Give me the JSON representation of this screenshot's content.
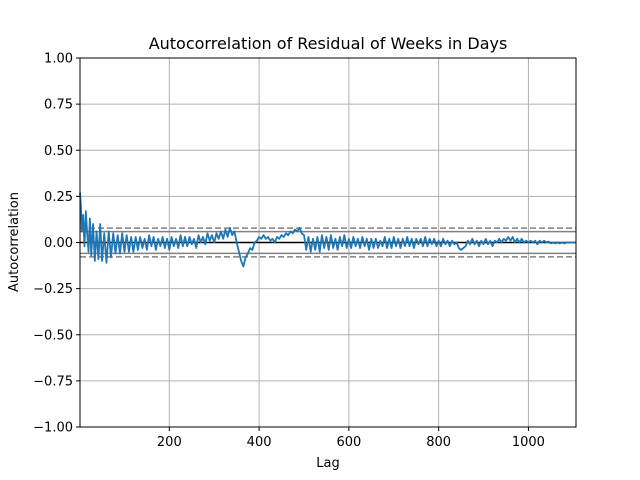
{
  "chart_data": {
    "type": "line",
    "title": "Autocorrelation of Residual of Weeks in Days",
    "xlabel": "Lag",
    "ylabel": "Autocorrelation",
    "xlim": [
      1,
      1106
    ],
    "ylim": [
      -1.0,
      1.0
    ],
    "x_ticks": [
      200,
      400,
      600,
      800,
      1000
    ],
    "x_tick_labels": [
      "200",
      "400",
      "600",
      "800",
      "1000"
    ],
    "y_ticks": [
      -1.0,
      -0.75,
      -0.5,
      -0.25,
      0.0,
      0.25,
      0.5,
      0.75,
      1.0
    ],
    "y_tick_labels": [
      "−1.00",
      "−0.75",
      "−0.50",
      "−0.25",
      "0.00",
      "0.25",
      "0.50",
      "0.75",
      "1.00"
    ],
    "grid": true,
    "confidence_bands": {
      "outer_dashed": [
        0.078,
        -0.078
      ],
      "inner_solid": [
        0.059,
        -0.059
      ],
      "zero_line": 0.0
    },
    "series": [
      {
        "color": "#1f77b4",
        "points": [
          [
            1,
            0.27
          ],
          [
            3,
            0.2
          ],
          [
            5,
            0.06
          ],
          [
            8,
            0.15
          ],
          [
            11,
            -0.02
          ],
          [
            14,
            0.17
          ],
          [
            17,
            0.05
          ],
          [
            20,
            -0.05
          ],
          [
            23,
            0.13
          ],
          [
            26,
            -0.07
          ],
          [
            30,
            0.1
          ],
          [
            34,
            -0.1
          ],
          [
            38,
            0.06
          ],
          [
            42,
            -0.09
          ],
          [
            46,
            0.1
          ],
          [
            50,
            -0.1
          ],
          [
            55,
            0.05
          ],
          [
            60,
            -0.11
          ],
          [
            65,
            0.06
          ],
          [
            70,
            -0.08
          ],
          [
            75,
            0.05
          ],
          [
            80,
            -0.06
          ],
          [
            85,
            0.04
          ],
          [
            90,
            -0.06
          ],
          [
            95,
            0.05
          ],
          [
            100,
            -0.05
          ],
          [
            105,
            0.04
          ],
          [
            110,
            -0.05
          ],
          [
            115,
            0.03
          ],
          [
            120,
            -0.05
          ],
          [
            125,
            0.03
          ],
          [
            130,
            -0.04
          ],
          [
            135,
            0.03
          ],
          [
            140,
            -0.03
          ],
          [
            145,
            0.02
          ],
          [
            150,
            -0.04
          ],
          [
            155,
            0.04
          ],
          [
            160,
            -0.02
          ],
          [
            165,
            0.03
          ],
          [
            170,
            -0.04
          ],
          [
            175,
            0.02
          ],
          [
            180,
            -0.02
          ],
          [
            185,
            0.03
          ],
          [
            190,
            -0.03
          ],
          [
            195,
            0.02
          ],
          [
            200,
            -0.04
          ],
          [
            205,
            0.03
          ],
          [
            210,
            -0.02
          ],
          [
            215,
            0.02
          ],
          [
            220,
            -0.03
          ],
          [
            225,
            0.04
          ],
          [
            230,
            -0.02
          ],
          [
            235,
            0.03
          ],
          [
            240,
            -0.02
          ],
          [
            245,
            0.03
          ],
          [
            250,
            -0.01
          ],
          [
            255,
            0.02
          ],
          [
            260,
            -0.03
          ],
          [
            265,
            0.04
          ],
          [
            270,
            0.0
          ],
          [
            275,
            0.03
          ],
          [
            280,
            -0.01
          ],
          [
            285,
            0.05
          ],
          [
            290,
            0.01
          ],
          [
            295,
            0.04
          ],
          [
            300,
            0.0
          ],
          [
            305,
            0.05
          ],
          [
            310,
            0.02
          ],
          [
            315,
            0.06
          ],
          [
            320,
            0.02
          ],
          [
            325,
            0.07
          ],
          [
            330,
            0.03
          ],
          [
            335,
            0.08
          ],
          [
            340,
            0.04
          ],
          [
            345,
            0.06
          ],
          [
            350,
            0.0
          ],
          [
            355,
            -0.05
          ],
          [
            360,
            -0.1
          ],
          [
            365,
            -0.13
          ],
          [
            370,
            -0.08
          ],
          [
            375,
            -0.06
          ],
          [
            380,
            -0.03
          ],
          [
            385,
            -0.04
          ],
          [
            390,
            0.0
          ],
          [
            395,
            0.01
          ],
          [
            400,
            0.03
          ],
          [
            405,
            0.02
          ],
          [
            410,
            0.04
          ],
          [
            415,
            0.02
          ],
          [
            420,
            0.03
          ],
          [
            425,
            0.01
          ],
          [
            430,
            0.02
          ],
          [
            435,
            0.0
          ],
          [
            440,
            0.03
          ],
          [
            445,
            0.02
          ],
          [
            450,
            0.04
          ],
          [
            455,
            0.03
          ],
          [
            460,
            0.05
          ],
          [
            465,
            0.04
          ],
          [
            470,
            0.06
          ],
          [
            475,
            0.05
          ],
          [
            480,
            0.07
          ],
          [
            485,
            0.06
          ],
          [
            490,
            0.08
          ],
          [
            495,
            0.05
          ],
          [
            500,
            0.04
          ],
          [
            505,
            -0.04
          ],
          [
            510,
            0.03
          ],
          [
            515,
            -0.05
          ],
          [
            520,
            0.02
          ],
          [
            525,
            -0.04
          ],
          [
            530,
            0.03
          ],
          [
            535,
            -0.05
          ],
          [
            540,
            0.04
          ],
          [
            545,
            -0.03
          ],
          [
            550,
            0.03
          ],
          [
            555,
            -0.04
          ],
          [
            560,
            0.04
          ],
          [
            565,
            -0.03
          ],
          [
            570,
            0.02
          ],
          [
            575,
            -0.04
          ],
          [
            580,
            0.03
          ],
          [
            585,
            -0.02
          ],
          [
            590,
            0.04
          ],
          [
            595,
            -0.03
          ],
          [
            600,
            0.02
          ],
          [
            605,
            -0.03
          ],
          [
            610,
            0.03
          ],
          [
            615,
            -0.02
          ],
          [
            620,
            0.02
          ],
          [
            625,
            -0.03
          ],
          [
            630,
            0.03
          ],
          [
            635,
            -0.02
          ],
          [
            640,
            0.02
          ],
          [
            645,
            -0.04
          ],
          [
            650,
            0.02
          ],
          [
            655,
            -0.03
          ],
          [
            660,
            0.02
          ],
          [
            665,
            -0.03
          ],
          [
            670,
            0.01
          ],
          [
            675,
            -0.02
          ],
          [
            680,
            0.03
          ],
          [
            685,
            -0.03
          ],
          [
            690,
            0.02
          ],
          [
            695,
            -0.03
          ],
          [
            700,
            0.03
          ],
          [
            705,
            -0.02
          ],
          [
            710,
            0.02
          ],
          [
            715,
            -0.03
          ],
          [
            720,
            0.02
          ],
          [
            725,
            -0.02
          ],
          [
            730,
            0.03
          ],
          [
            735,
            -0.02
          ],
          [
            740,
            0.02
          ],
          [
            745,
            -0.03
          ],
          [
            750,
            0.02
          ],
          [
            755,
            -0.01
          ],
          [
            760,
            0.02
          ],
          [
            765,
            -0.02
          ],
          [
            770,
            0.03
          ],
          [
            775,
            -0.02
          ],
          [
            780,
            0.02
          ],
          [
            785,
            -0.01
          ],
          [
            790,
            0.02
          ],
          [
            795,
            -0.02
          ],
          [
            800,
            0.01
          ],
          [
            805,
            -0.02
          ],
          [
            810,
            0.02
          ],
          [
            815,
            -0.01
          ],
          [
            820,
            0.01
          ],
          [
            825,
            -0.02
          ],
          [
            830,
            0.01
          ],
          [
            835,
            -0.01
          ],
          [
            840,
            0.0
          ],
          [
            845,
            -0.03
          ],
          [
            850,
            -0.04
          ],
          [
            855,
            -0.03
          ],
          [
            860,
            -0.02
          ],
          [
            865,
            0.01
          ],
          [
            870,
            -0.01
          ],
          [
            875,
            0.02
          ],
          [
            880,
            -0.01
          ],
          [
            885,
            0.01
          ],
          [
            890,
            -0.02
          ],
          [
            895,
            0.01
          ],
          [
            900,
            -0.01
          ],
          [
            905,
            0.02
          ],
          [
            910,
            -0.01
          ],
          [
            915,
            0.01
          ],
          [
            920,
            -0.02
          ],
          [
            925,
            0.01
          ],
          [
            930,
            0.0
          ],
          [
            935,
            0.02
          ],
          [
            940,
            0.0
          ],
          [
            945,
            0.02
          ],
          [
            950,
            0.01
          ],
          [
            955,
            0.03
          ],
          [
            960,
            0.01
          ],
          [
            965,
            0.03
          ],
          [
            970,
            0.0
          ],
          [
            975,
            0.02
          ],
          [
            980,
            0.0
          ],
          [
            985,
            0.02
          ],
          [
            990,
            0.0
          ],
          [
            995,
            0.01
          ],
          [
            1000,
            0.0
          ],
          [
            1005,
            0.01
          ],
          [
            1010,
            0.0
          ],
          [
            1015,
            0.01
          ],
          [
            1020,
            -0.01
          ],
          [
            1025,
            0.01
          ],
          [
            1030,
            0.0
          ],
          [
            1035,
            0.01
          ],
          [
            1040,
            0.0
          ],
          [
            1045,
            0.005
          ],
          [
            1050,
            -0.005
          ],
          [
            1055,
            0.0
          ],
          [
            1060,
            -0.005
          ],
          [
            1065,
            0.0
          ],
          [
            1070,
            -0.005
          ],
          [
            1075,
            0.0
          ],
          [
            1080,
            -0.005
          ],
          [
            1085,
            0.0
          ],
          [
            1090,
            0.0
          ],
          [
            1095,
            0.0
          ],
          [
            1100,
            0.0
          ],
          [
            1106,
            0.0
          ]
        ]
      }
    ]
  }
}
